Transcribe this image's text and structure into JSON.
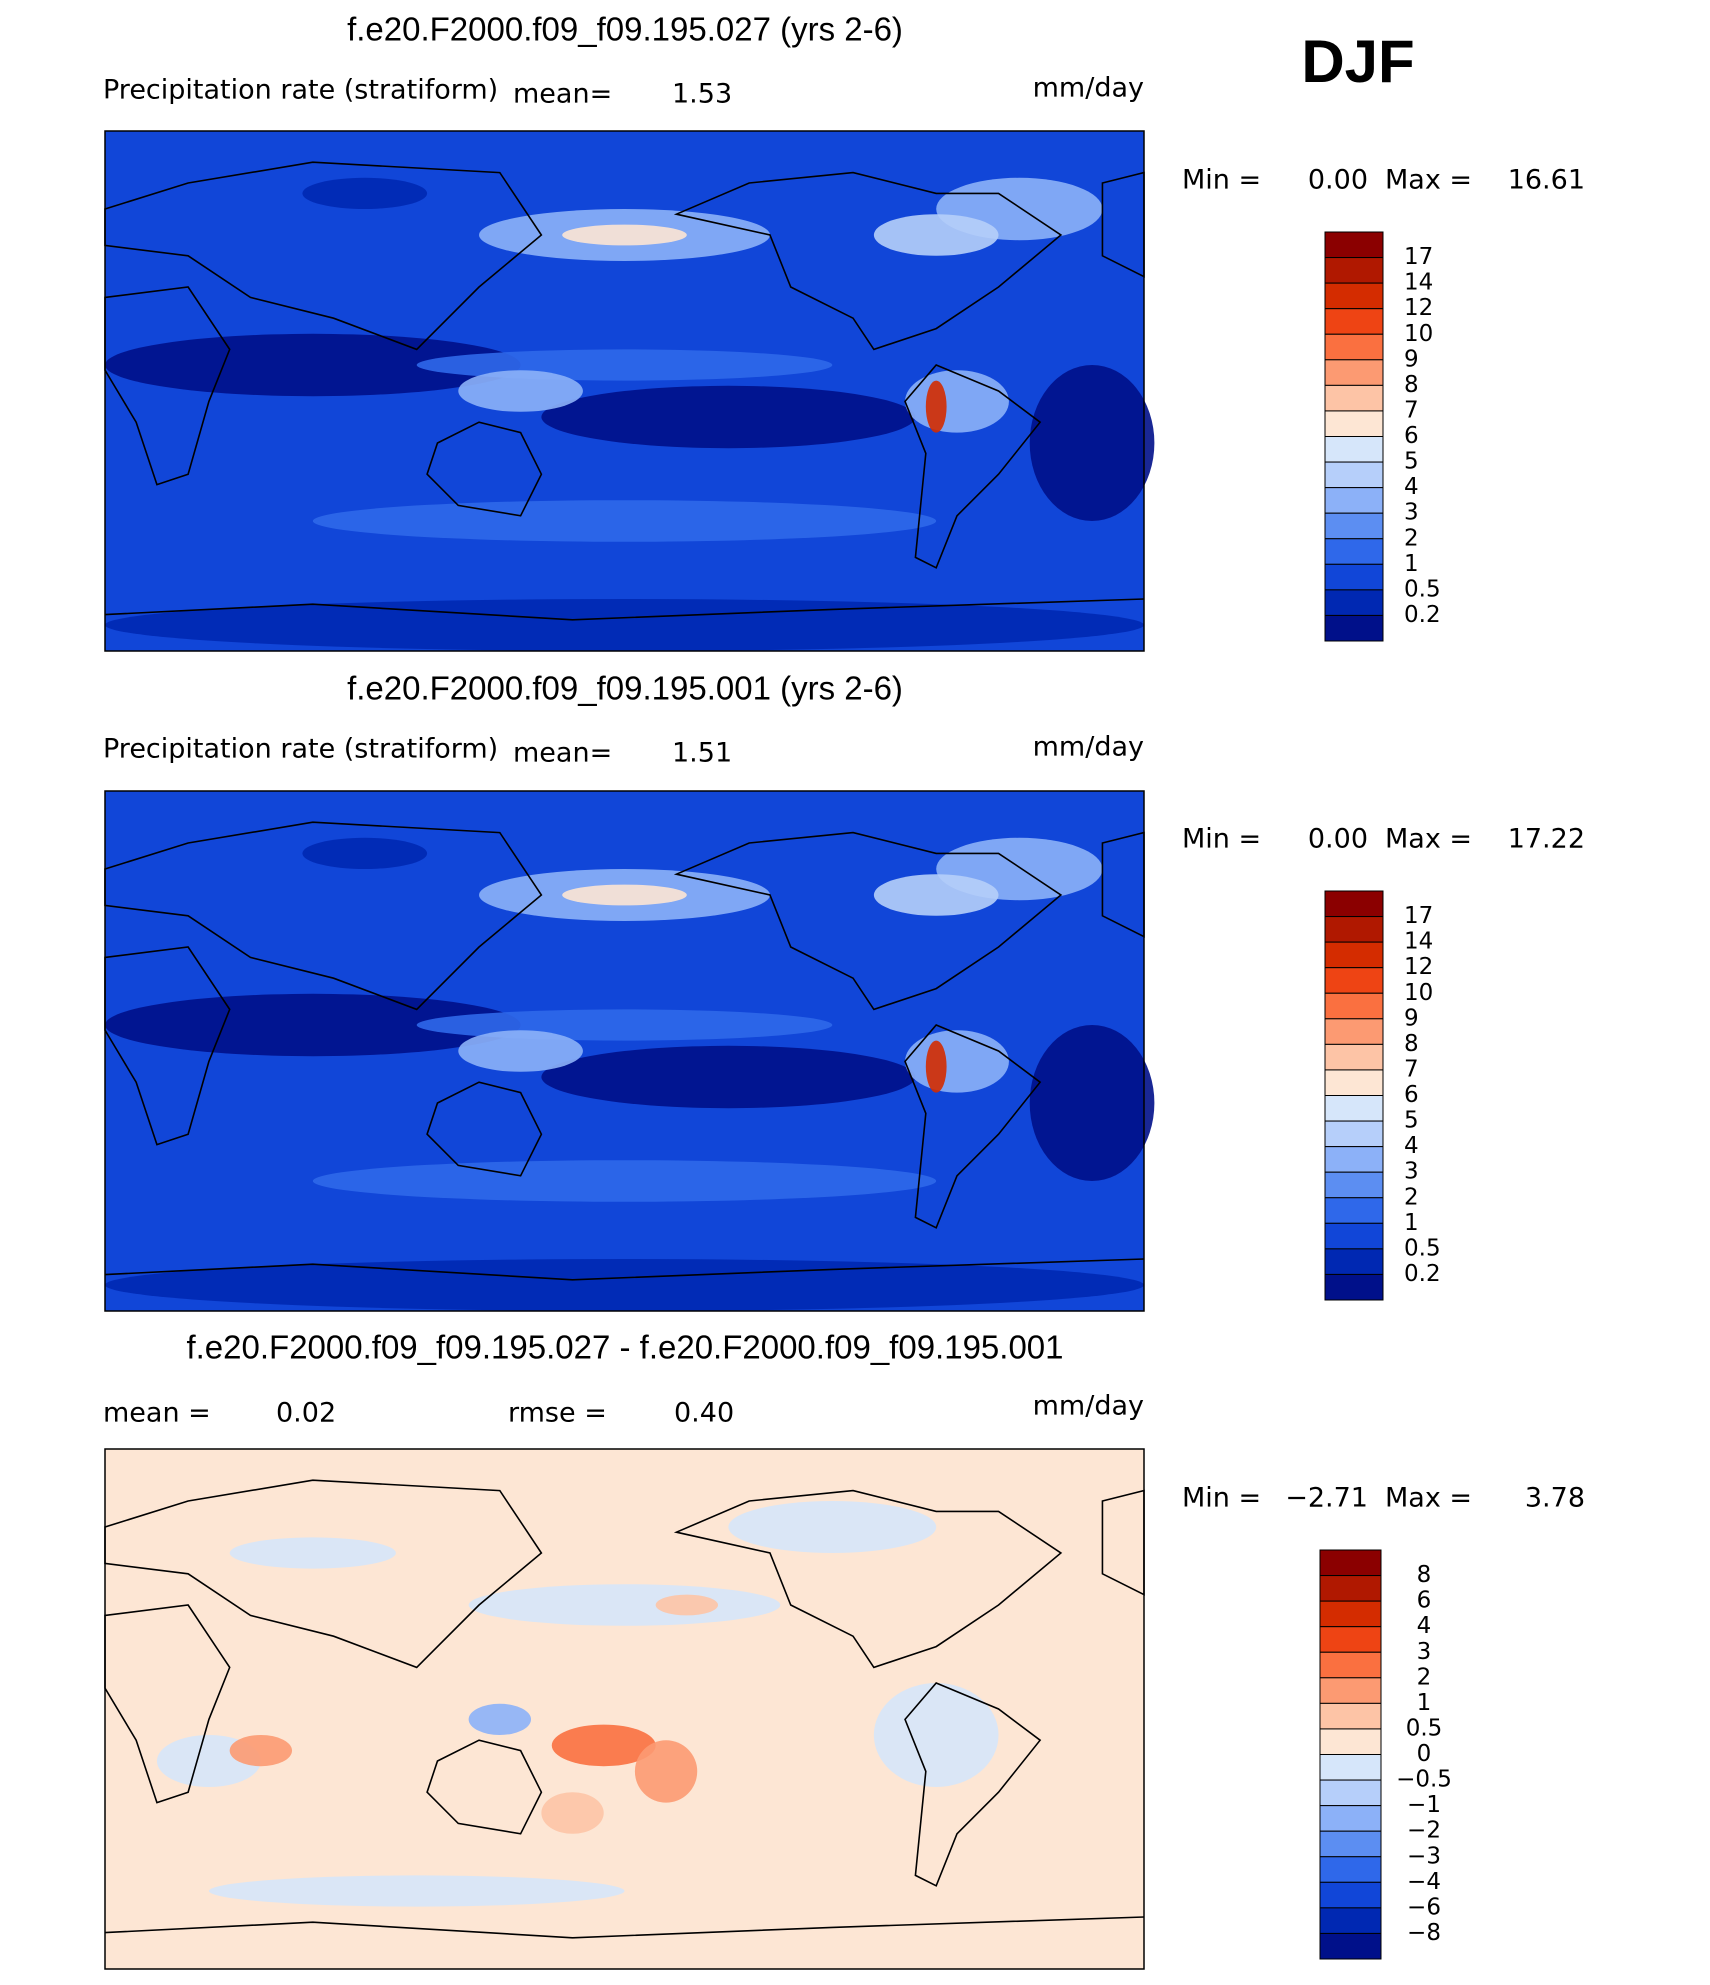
{
  "season": "DJF",
  "panels": [
    {
      "title": "f.e20.F2000.f09_f09.195.027 (yrs 2-6)",
      "variable": "Precipitation rate (stratiform)",
      "mean_label": "mean=",
      "mean": "1.53",
      "units": "mm/day",
      "min_label": "Min =",
      "min": "0.00",
      "max_label": "Max =",
      "max": "16.61",
      "colorbar": {
        "labels": [
          "17",
          "14",
          "12",
          "10",
          "9",
          "8",
          "7",
          "6",
          "5",
          "4",
          "3",
          "2",
          "1",
          "0.5",
          "0.2"
        ],
        "colors": [
          "#8b0000",
          "#b01800",
          "#d42c00",
          "#ee4414",
          "#fa7040",
          "#fc9a72",
          "#fdc4a6",
          "#fde6d4",
          "#d6e6fa",
          "#b6cffa",
          "#8cb1f8",
          "#5c8ef2",
          "#2f68ea",
          "#1146d8",
          "#0028b2",
          "#00108a"
        ]
      }
    },
    {
      "title": "f.e20.F2000.f09_f09.195.001 (yrs 2-6)",
      "variable": "Precipitation rate (stratiform)",
      "mean_label": "mean=",
      "mean": "1.51",
      "units": "mm/day",
      "min_label": "Min =",
      "min": "0.00",
      "max_label": "Max =",
      "max": "17.22",
      "colorbar": {
        "labels": [
          "17",
          "14",
          "12",
          "10",
          "9",
          "8",
          "7",
          "6",
          "5",
          "4",
          "3",
          "2",
          "1",
          "0.5",
          "0.2"
        ],
        "colors": [
          "#8b0000",
          "#b01800",
          "#d42c00",
          "#ee4414",
          "#fa7040",
          "#fc9a72",
          "#fdc4a6",
          "#fde6d4",
          "#d6e6fa",
          "#b6cffa",
          "#8cb1f8",
          "#5c8ef2",
          "#2f68ea",
          "#1146d8",
          "#0028b2",
          "#00108a"
        ]
      }
    },
    {
      "title": "f.e20.F2000.f09_f09.195.027 - f.e20.F2000.f09_f09.195.001",
      "mean_label": "mean =",
      "mean": "0.02",
      "rmse_label": "rmse =",
      "rmse": "0.40",
      "units": "mm/day",
      "min_label": "Min =",
      "min": "−2.71",
      "max_label": "Max =",
      "max": "3.78",
      "colorbar": {
        "labels": [
          "8",
          "6",
          "4",
          "3",
          "2",
          "1",
          "0.5",
          "0",
          "−0.5",
          "−1",
          "−2",
          "−3",
          "−4",
          "−6",
          "−8"
        ],
        "colors": [
          "#8b0000",
          "#b01800",
          "#d42c00",
          "#ee4414",
          "#fa7040",
          "#fc9a72",
          "#fdc4a6",
          "#fde6d4",
          "#d6e6fa",
          "#b6cffa",
          "#8cb1f8",
          "#5c8ef2",
          "#2f68ea",
          "#1146d8",
          "#0028b2",
          "#00108a"
        ]
      }
    }
  ]
}
